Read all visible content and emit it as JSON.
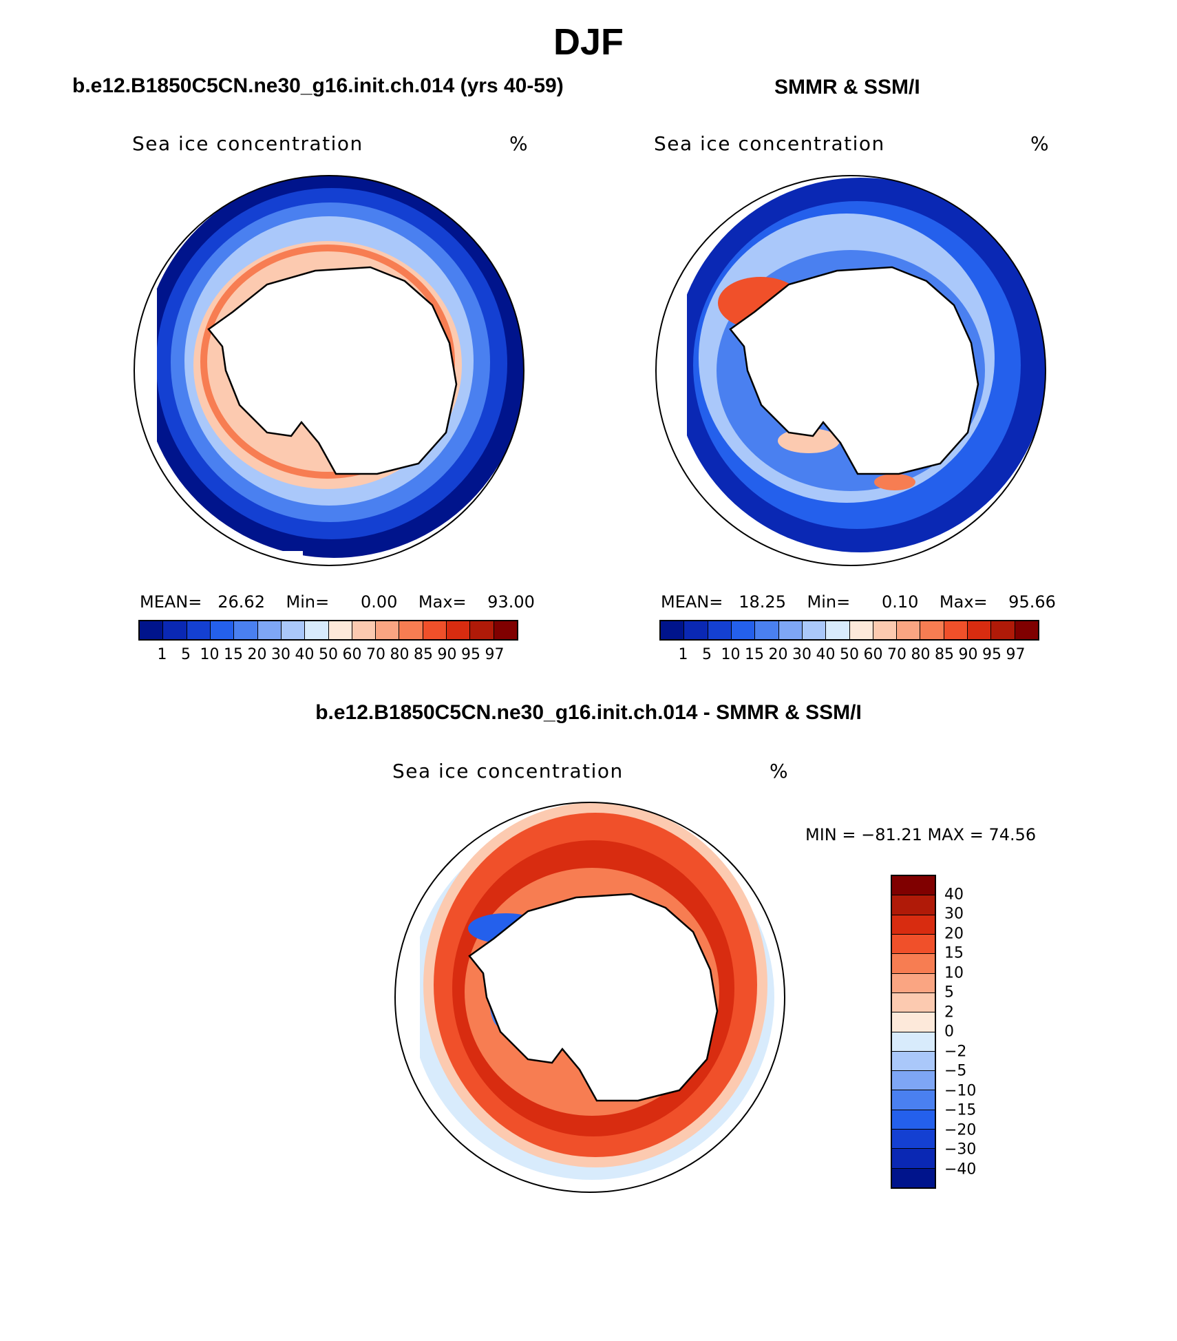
{
  "page": {
    "title": "DJF"
  },
  "panels": {
    "model": {
      "title": "b.e12.B1850C5CN.ne30_g16.init.ch.014 (yrs 40-59)",
      "variable": "Sea ice concentration",
      "units": "%",
      "mean_label": "MEAN=",
      "mean": "26.62",
      "min_label": "Min=",
      "min": "0.00",
      "max_label": "Max=",
      "max": "93.00"
    },
    "obs": {
      "title": "SMMR & SSM/I",
      "variable": "Sea ice concentration",
      "units": "%",
      "mean_label": "MEAN=",
      "mean": "18.25",
      "min_label": "Min=",
      "min": "0.10",
      "max_label": "Max=",
      "max": "95.66"
    },
    "diff": {
      "title": "b.e12.B1850C5CN.ne30_g16.init.ch.014 - SMMR & SSM/I",
      "variable": "Sea ice concentration",
      "units": "%",
      "minmax_text": "MIN = −81.21  MAX =   74.56"
    }
  },
  "colorbars": {
    "concentration": {
      "colors": [
        "#00148c",
        "#0a28b4",
        "#1440d2",
        "#2460ec",
        "#4a80f0",
        "#7ea6f5",
        "#aac8fa",
        "#d8ebfc",
        "#fde9da",
        "#fccab0",
        "#faa582",
        "#f77d52",
        "#f0502a",
        "#d82c10",
        "#b01a08",
        "#800000"
      ],
      "ticks": [
        "1",
        "5",
        "10",
        "15",
        "20",
        "30",
        "40",
        "50",
        "60",
        "70",
        "80",
        "85",
        "90",
        "95",
        "97"
      ]
    },
    "difference": {
      "colors": [
        "#800000",
        "#b01a08",
        "#d82c10",
        "#f0502a",
        "#f77d52",
        "#faa582",
        "#fccab0",
        "#fde9da",
        "#d8ebfc",
        "#aac8fa",
        "#7ea6f5",
        "#4a80f0",
        "#2460ec",
        "#1440d2",
        "#0a28b4",
        "#00148c"
      ],
      "ticks": [
        "40",
        "30",
        "20",
        "15",
        "10",
        "5",
        "2",
        "0",
        "−2",
        "−5",
        "−10",
        "−15",
        "−20",
        "−30",
        "−40"
      ]
    }
  }
}
